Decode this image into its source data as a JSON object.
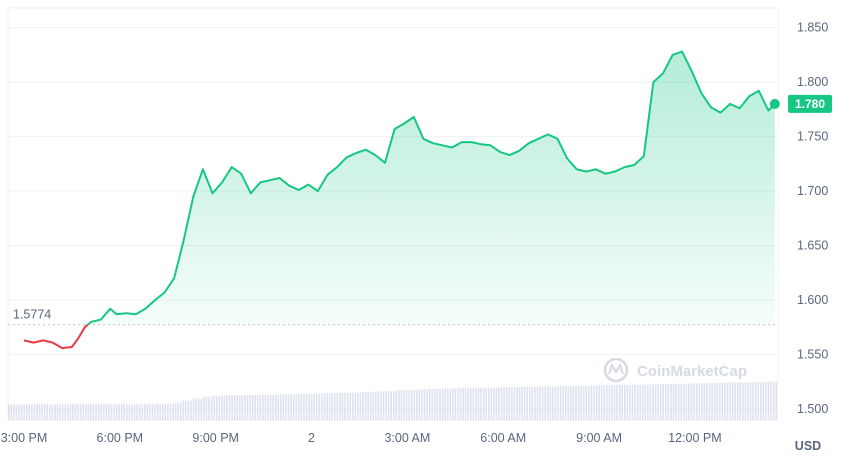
{
  "chart_data": {
    "type": "area",
    "currency": "USD",
    "reference_value": 1.5774,
    "reference_label": "1.5774",
    "last_value": 1.78,
    "last_label": "1.780",
    "watermark": "CoinMarketCap",
    "y_ticks": [
      "1.850",
      "1.800",
      "1.750",
      "1.700",
      "1.650",
      "1.600",
      "1.550",
      "1.500"
    ],
    "y_tick_values": [
      1.85,
      1.8,
      1.75,
      1.7,
      1.65,
      1.6,
      1.55,
      1.5
    ],
    "ylim": [
      1.49,
      1.868
    ],
    "x_ticks": [
      "3:00 PM",
      "6:00 PM",
      "9:00 PM",
      "2",
      "3:00 AM",
      "6:00 AM",
      "9:00 AM",
      "12:00 PM"
    ],
    "x_tick_hours": [
      0,
      3,
      6,
      9,
      12,
      15,
      18,
      21
    ],
    "xlim_hours": [
      -0.5,
      23.6
    ],
    "colors": {
      "up": "#16c784",
      "down": "#ea3943",
      "grid": "#eff2f5",
      "ref": "#bcc3cd",
      "volume": "#cfd6e4"
    },
    "series": [
      {
        "x_hours": [
          0,
          0.3,
          0.6,
          0.9,
          1.2,
          1.5,
          1.7,
          1.9,
          2.1,
          2.4,
          2.7,
          2.9,
          3.2,
          3.5,
          3.8,
          4.1,
          4.4,
          4.7,
          5.0,
          5.3,
          5.6,
          5.9,
          6.2,
          6.5,
          6.8,
          7.1,
          7.4,
          7.7,
          8.0,
          8.3,
          8.6,
          8.9,
          9.2,
          9.5,
          9.8,
          10.1,
          10.4,
          10.7,
          11.0,
          11.3,
          11.6,
          11.9,
          12.2,
          12.5,
          12.8,
          13.1,
          13.4,
          13.7,
          14.0,
          14.3,
          14.6,
          14.9,
          15.2,
          15.5,
          15.8,
          16.1,
          16.4,
          16.7,
          17.0,
          17.3,
          17.6,
          17.9,
          18.2,
          18.5,
          18.8,
          19.1,
          19.4,
          19.7,
          20.0,
          20.3,
          20.6,
          20.9,
          21.2,
          21.5,
          21.8,
          22.1,
          22.4,
          22.7,
          23.0,
          23.3,
          23.5
        ],
        "values": [
          1.563,
          1.561,
          1.563,
          1.561,
          1.556,
          1.557,
          1.565,
          1.575,
          1.58,
          1.582,
          1.592,
          1.587,
          1.588,
          1.587,
          1.592,
          1.6,
          1.607,
          1.62,
          1.655,
          1.695,
          1.72,
          1.698,
          1.708,
          1.722,
          1.716,
          1.698,
          1.708,
          1.71,
          1.712,
          1.705,
          1.701,
          1.706,
          1.7,
          1.715,
          1.722,
          1.731,
          1.735,
          1.738,
          1.733,
          1.726,
          1.757,
          1.762,
          1.768,
          1.748,
          1.744,
          1.742,
          1.74,
          1.745,
          1.745,
          1.743,
          1.742,
          1.736,
          1.733,
          1.737,
          1.744,
          1.748,
          1.752,
          1.748,
          1.73,
          1.72,
          1.718,
          1.72,
          1.716,
          1.718,
          1.722,
          1.724,
          1.732,
          1.8,
          1.808,
          1.825,
          1.828,
          1.81,
          1.79,
          1.777,
          1.772,
          1.78,
          1.776,
          1.787,
          1.792,
          1.774,
          1.78
        ],
        "volume": [
          0.4,
          0.42,
          0.41,
          0.4,
          0.4,
          0.41,
          0.42,
          0.41,
          0.4,
          0.41,
          0.4,
          0.41,
          0.4,
          0.4,
          0.41,
          0.42,
          0.42,
          0.45,
          0.5,
          0.55,
          0.6,
          0.62,
          0.63,
          0.63,
          0.64,
          0.64,
          0.65,
          0.65,
          0.66,
          0.66,
          0.67,
          0.67,
          0.68,
          0.69,
          0.7,
          0.7,
          0.71,
          0.72,
          0.73,
          0.74,
          0.76,
          0.77,
          0.78,
          0.79,
          0.8,
          0.81,
          0.81,
          0.82,
          0.82,
          0.83,
          0.83,
          0.84,
          0.84,
          0.85,
          0.85,
          0.86,
          0.86,
          0.87,
          0.87,
          0.88,
          0.88,
          0.89,
          0.89,
          0.9,
          0.9,
          0.91,
          0.91,
          0.92,
          0.92,
          0.93,
          0.93,
          0.94,
          0.94,
          0.95,
          0.95,
          0.96,
          0.96,
          0.97,
          0.97,
          0.98,
          0.98
        ]
      }
    ]
  }
}
